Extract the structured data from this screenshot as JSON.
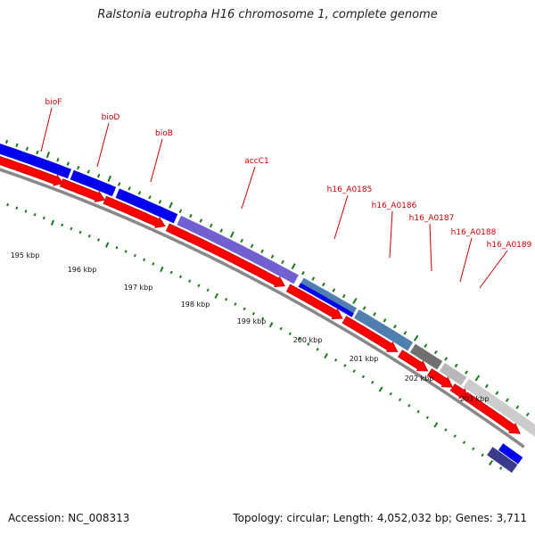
{
  "title": "Ralstonia eutropha H16 chromosome 1, complete genome",
  "footer": {
    "accession": "Accession: NC_008313",
    "genome_info": "Topology: circular; Length: 4,052,032 bp; Genes: 3,711"
  },
  "scale_labels": [
    "195 kbp",
    "196 kbp",
    "197 kbp",
    "198 kbp",
    "199 kbp",
    "200 kbp",
    "201 kbp",
    "202 kbp",
    "203 kbp"
  ],
  "gene_labels": [
    "bioF",
    "bioD",
    "bioB",
    "accC1",
    "h16_A0185",
    "h16_A0186",
    "h16_A0187",
    "h16_A0188",
    "h16_A0189"
  ],
  "colors": {
    "cds": "#ff0000",
    "cog_blue": "#0000ee",
    "cog_purple": "#7060d0",
    "cog_steel": "#4f7fb0",
    "cog_darkgray": "#707070",
    "cog_gray": "#b8b8b8",
    "cog_lightgray": "#cccccc",
    "cog_navy": "#3a3a8a",
    "backbone": "#888888",
    "tick": "#1a7a1a",
    "label": "#cc0000"
  }
}
